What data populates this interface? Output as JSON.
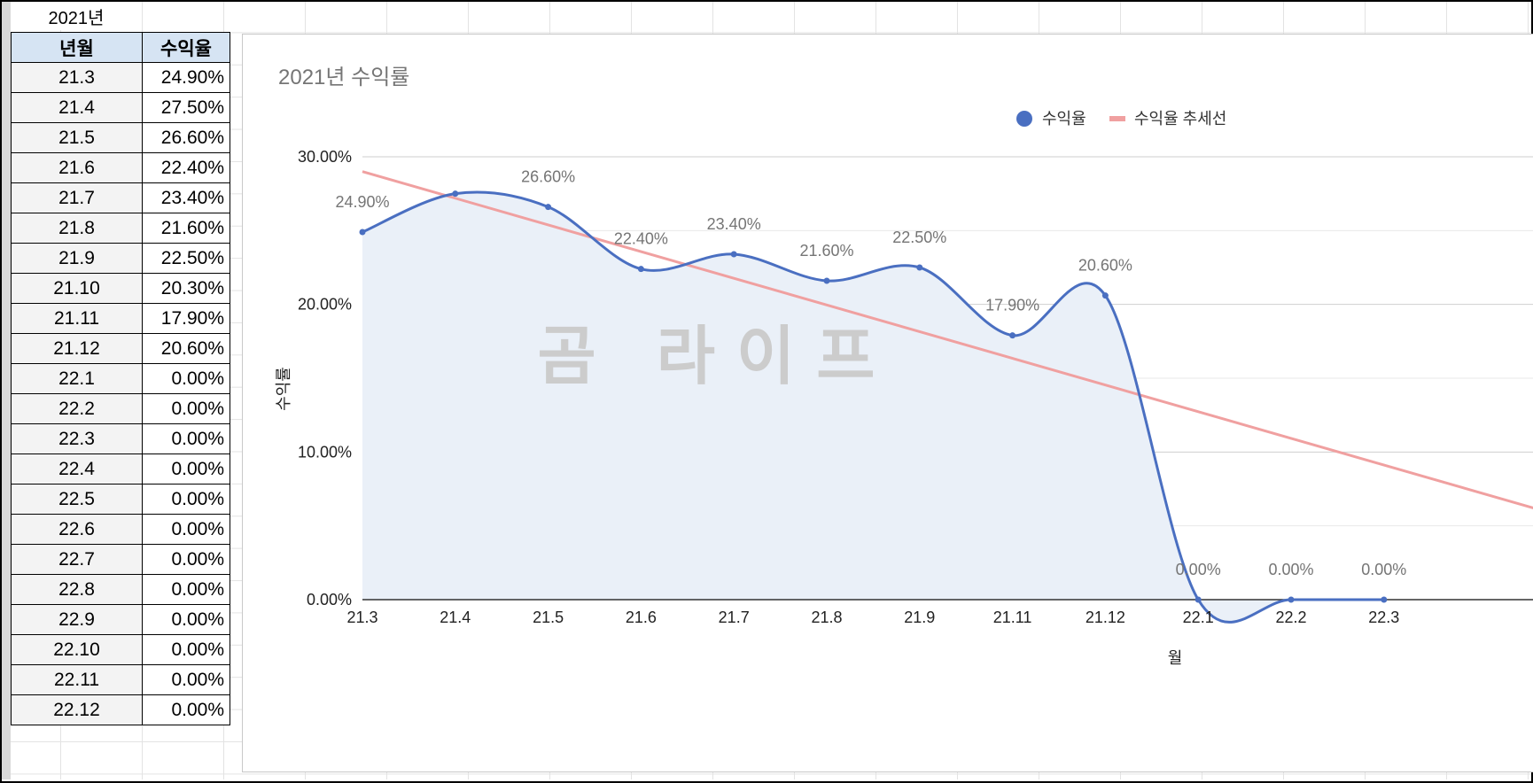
{
  "sheet": {
    "title_cell": "2021년",
    "headers": [
      "년월",
      "수익율"
    ],
    "rows": [
      [
        "21.3",
        "24.90%"
      ],
      [
        "21.4",
        "27.50%"
      ],
      [
        "21.5",
        "26.60%"
      ],
      [
        "21.6",
        "22.40%"
      ],
      [
        "21.7",
        "23.40%"
      ],
      [
        "21.8",
        "21.60%"
      ],
      [
        "21.9",
        "22.50%"
      ],
      [
        "21.10",
        "20.30%"
      ],
      [
        "21.11",
        "17.90%"
      ],
      [
        "21.12",
        "20.60%"
      ],
      [
        "22.1",
        "0.00%"
      ],
      [
        "22.2",
        "0.00%"
      ],
      [
        "22.3",
        "0.00%"
      ],
      [
        "22.4",
        "0.00%"
      ],
      [
        "22.5",
        "0.00%"
      ],
      [
        "22.6",
        "0.00%"
      ],
      [
        "22.7",
        "0.00%"
      ],
      [
        "22.8",
        "0.00%"
      ],
      [
        "22.9",
        "0.00%"
      ],
      [
        "22.10",
        "0.00%"
      ],
      [
        "22.11",
        "0.00%"
      ],
      [
        "22.12",
        "0.00%"
      ]
    ]
  },
  "chart_data": {
    "type": "area",
    "title": "2021년 수익률",
    "xlabel": "월",
    "ylabel": "수익률",
    "watermark": "곰  라이프",
    "ylim": [
      0,
      30
    ],
    "yticks": [
      "0.00%",
      "10.00%",
      "20.00%",
      "30.00%"
    ],
    "x_tick_labels": [
      "21.3",
      "21.4",
      "21.5",
      "21.6",
      "21.7",
      "21.8",
      "21.9",
      "21.11",
      "21.12",
      "22.1",
      "22.2",
      "22.3"
    ],
    "categories": [
      "21.3",
      "21.4",
      "21.5",
      "21.6",
      "21.7",
      "21.8",
      "21.9",
      "21.11",
      "21.12",
      "22.1",
      "22.2",
      "22.3"
    ],
    "legend": {
      "position": "top-right",
      "entries": [
        "수익율",
        "수익율 추세선"
      ]
    },
    "series": [
      {
        "name": "수익율",
        "color": "#4a6fc1",
        "fill": "#eaf0f8",
        "values": [
          24.9,
          27.5,
          26.6,
          22.4,
          23.4,
          21.6,
          22.5,
          17.9,
          20.6,
          0,
          0,
          0
        ],
        "data_labels": [
          "24.90%",
          "",
          "26.60%",
          "22.40%",
          "23.40%",
          "21.60%",
          "22.50%",
          "17.90%",
          "20.60%",
          "0.00%",
          "0.00%",
          "0.00%"
        ]
      },
      {
        "name": "수익율 추세선",
        "color": "#f0a0a0",
        "type": "trend",
        "start": 29.0,
        "end": 6.2
      }
    ]
  }
}
